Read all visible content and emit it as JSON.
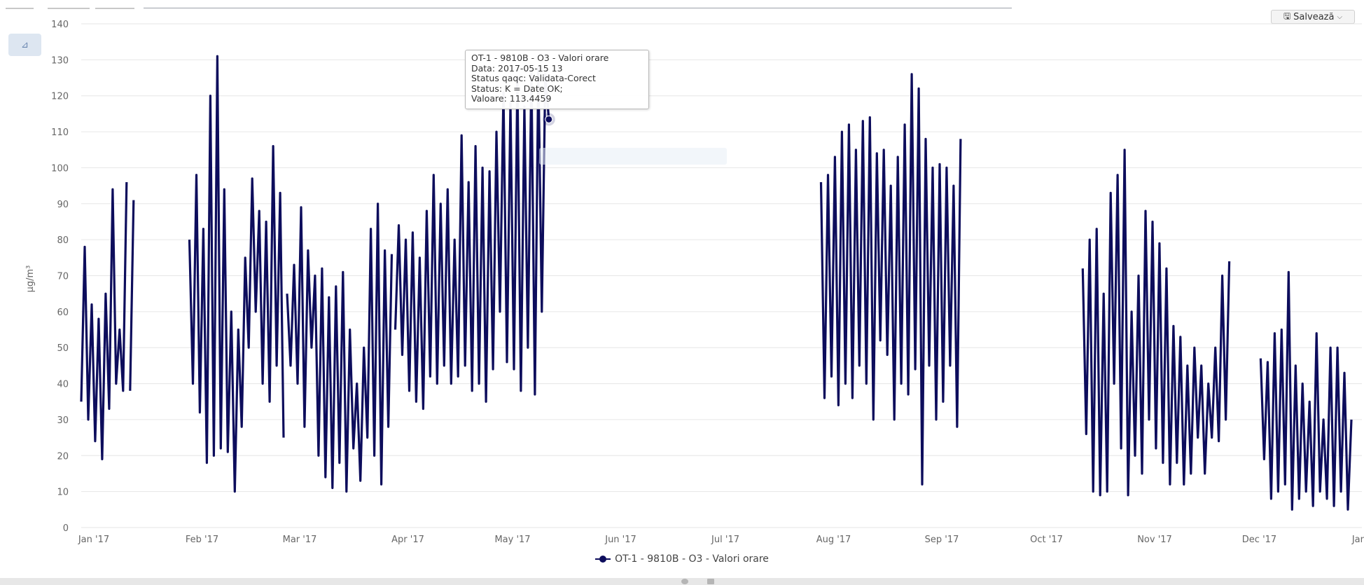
{
  "toolbar": {
    "save_label": "Salvează",
    "save_icon": "disk-icon",
    "menu_icon": "chevron-down-icon",
    "side_button_icon": "chart-menu-icon",
    "side_button_label": "⊿"
  },
  "tooltip": {
    "lines": [
      "OT-1 - 9810B - O3 - Valori orare",
      "Data: 2017-05-15 13",
      "Status qaqc: Validata-Corect",
      "Status: K = Date OK;",
      "Valoare: 113.4459"
    ]
  },
  "faded_button_label": "",
  "chart_data": {
    "type": "line",
    "title": "",
    "xlabel": "",
    "ylabel": "µg/m³",
    "ylim": [
      0,
      140
    ],
    "yticks": [
      0,
      10,
      20,
      30,
      40,
      50,
      60,
      70,
      80,
      90,
      100,
      110,
      120,
      130,
      140
    ],
    "xlim": [
      "2017-01-01",
      "2018-01-01"
    ],
    "xticks": [
      {
        "date": "2017-01-01",
        "label": "Jan '17"
      },
      {
        "date": "2017-02-01",
        "label": "Feb '17"
      },
      {
        "date": "2017-03-01",
        "label": "Mar '17"
      },
      {
        "date": "2017-04-01",
        "label": "Apr '17"
      },
      {
        "date": "2017-05-01",
        "label": "May '17"
      },
      {
        "date": "2017-06-01",
        "label": "Jun '17"
      },
      {
        "date": "2017-07-01",
        "label": "Jul '17"
      },
      {
        "date": "2017-08-01",
        "label": "Aug '17"
      },
      {
        "date": "2017-09-01",
        "label": "Sep '17"
      },
      {
        "date": "2017-10-01",
        "label": "Oct '17"
      },
      {
        "date": "2017-11-01",
        "label": "Nov '17"
      },
      {
        "date": "2017-12-01",
        "label": "Dec '17"
      },
      {
        "date": "2018-01-01",
        "label": "Jan '18"
      }
    ],
    "grid": true,
    "legend_position": "bottom-center",
    "series": [
      {
        "name": "OT-1 - 9810B - O3 - Valori orare",
        "color": "#0d0d5c",
        "segments": [
          {
            "x": [
              "2017-01-01",
              "2017-01-02",
              "2017-01-03",
              "2017-01-04",
              "2017-01-05",
              "2017-01-06",
              "2017-01-07",
              "2017-01-08",
              "2017-01-09",
              "2017-01-10",
              "2017-01-11",
              "2017-01-12",
              "2017-01-13",
              "2017-01-14"
            ],
            "y": [
              35,
              78,
              30,
              62,
              24,
              58,
              19,
              65,
              33,
              94,
              40,
              55,
              38,
              96
            ]
          },
          {
            "x": [
              "2017-01-15",
              "2017-01-16"
            ],
            "y": [
              38,
              91
            ]
          },
          {
            "x": [
              "2017-02-01",
              "2017-02-02",
              "2017-02-03",
              "2017-02-04",
              "2017-02-05",
              "2017-02-06",
              "2017-02-07",
              "2017-02-08",
              "2017-02-09",
              "2017-02-10",
              "2017-02-11",
              "2017-02-12",
              "2017-02-13",
              "2017-02-14",
              "2017-02-15",
              "2017-02-16",
              "2017-02-17",
              "2017-02-18",
              "2017-02-19",
              "2017-02-20",
              "2017-02-21",
              "2017-02-22",
              "2017-02-23",
              "2017-02-24",
              "2017-02-25",
              "2017-02-26",
              "2017-02-27",
              "2017-02-28"
            ],
            "y": [
              80,
              40,
              98,
              32,
              83,
              18,
              120,
              20,
              131,
              22,
              94,
              21,
              60,
              10,
              55,
              28,
              75,
              50,
              97,
              60,
              88,
              40,
              85,
              35,
              106,
              45,
              93,
              25
            ]
          },
          {
            "x": [
              "2017-03-01",
              "2017-03-02",
              "2017-03-03",
              "2017-03-04",
              "2017-03-05",
              "2017-03-06",
              "2017-03-07",
              "2017-03-08",
              "2017-03-09",
              "2017-03-10",
              "2017-03-11",
              "2017-03-12",
              "2017-03-13",
              "2017-03-14",
              "2017-03-15",
              "2017-03-16",
              "2017-03-17",
              "2017-03-18",
              "2017-03-19",
              "2017-03-20",
              "2017-03-21",
              "2017-03-22",
              "2017-03-23",
              "2017-03-24",
              "2017-03-25",
              "2017-03-26",
              "2017-03-27",
              "2017-03-28",
              "2017-03-29",
              "2017-03-30",
              "2017-03-31"
            ],
            "y": [
              65,
              45,
              73,
              40,
              89,
              28,
              77,
              50,
              70,
              20,
              72,
              14,
              64,
              11,
              67,
              18,
              71,
              10,
              55,
              22,
              40,
              13,
              50,
              25,
              83,
              20,
              90,
              12,
              77,
              28,
              76
            ]
          },
          {
            "x": [
              "2017-04-01",
              "2017-04-02",
              "2017-04-03",
              "2017-04-04",
              "2017-04-05",
              "2017-04-06",
              "2017-04-07",
              "2017-04-08",
              "2017-04-09",
              "2017-04-10",
              "2017-04-11",
              "2017-04-12",
              "2017-04-13",
              "2017-04-14",
              "2017-04-15",
              "2017-04-16",
              "2017-04-17",
              "2017-04-18",
              "2017-04-19",
              "2017-04-20",
              "2017-04-21",
              "2017-04-22",
              "2017-04-23",
              "2017-04-24",
              "2017-04-25",
              "2017-04-26",
              "2017-04-27",
              "2017-04-28",
              "2017-04-29",
              "2017-04-30",
              "2017-05-01",
              "2017-05-02",
              "2017-05-03",
              "2017-05-04",
              "2017-05-05",
              "2017-05-06",
              "2017-05-07",
              "2017-05-08",
              "2017-05-09",
              "2017-05-10",
              "2017-05-11",
              "2017-05-12",
              "2017-05-13",
              "2017-05-14",
              "2017-05-15"
            ],
            "y": [
              55,
              84,
              48,
              80,
              38,
              82,
              35,
              75,
              33,
              88,
              42,
              98,
              40,
              90,
              45,
              94,
              40,
              80,
              42,
              109,
              45,
              96,
              38,
              106,
              40,
              100,
              35,
              99,
              44,
              110,
              60,
              121,
              46,
              118,
              44,
              125,
              38,
              117,
              50,
              127,
              37,
              128,
              60,
              126,
              113.4459
            ]
          }
        ],
        "segments_2": [
          {
            "x": [
              "2017-08-01",
              "2017-08-02",
              "2017-08-03",
              "2017-08-04",
              "2017-08-05",
              "2017-08-06",
              "2017-08-07",
              "2017-08-08",
              "2017-08-09",
              "2017-08-10",
              "2017-08-11",
              "2017-08-12",
              "2017-08-13",
              "2017-08-14",
              "2017-08-15",
              "2017-08-16",
              "2017-08-17",
              "2017-08-18",
              "2017-08-19",
              "2017-08-20",
              "2017-08-21",
              "2017-08-22",
              "2017-08-23",
              "2017-08-24",
              "2017-08-25",
              "2017-08-26",
              "2017-08-27",
              "2017-08-28",
              "2017-08-29",
              "2017-08-30",
              "2017-08-31",
              "2017-09-01",
              "2017-09-02",
              "2017-09-03",
              "2017-09-04",
              "2017-09-05",
              "2017-09-06",
              "2017-09-07",
              "2017-09-08",
              "2017-09-09",
              "2017-09-10"
            ],
            "y": [
              96,
              36,
              98,
              42,
              103,
              34,
              110,
              40,
              112,
              36,
              105,
              45,
              113,
              40,
              114,
              30,
              104,
              52,
              105,
              48,
              95,
              30,
              103,
              40,
              112,
              37,
              126,
              44,
              122,
              12,
              108,
              45,
              100,
              30,
              101,
              35,
              100,
              45,
              95,
              28,
              108
            ]
          },
          {
            "x": [
              "2017-10-15",
              "2017-10-16",
              "2017-10-17",
              "2017-10-18",
              "2017-10-19",
              "2017-10-20",
              "2017-10-21",
              "2017-10-22",
              "2017-10-23",
              "2017-10-24",
              "2017-10-25",
              "2017-10-26",
              "2017-10-27",
              "2017-10-28",
              "2017-10-29",
              "2017-10-30",
              "2017-10-31",
              "2017-11-01",
              "2017-11-02",
              "2017-11-03",
              "2017-11-04",
              "2017-11-05",
              "2017-11-06",
              "2017-11-07",
              "2017-11-08",
              "2017-11-09",
              "2017-11-10",
              "2017-11-11",
              "2017-11-12",
              "2017-11-13",
              "2017-11-14",
              "2017-11-15",
              "2017-11-16",
              "2017-11-17",
              "2017-11-18",
              "2017-11-19",
              "2017-11-20",
              "2017-11-21",
              "2017-11-22",
              "2017-11-23",
              "2017-11-24",
              "2017-11-25",
              "2017-11-26"
            ],
            "y": [
              72,
              26,
              80,
              10,
              83,
              9,
              65,
              10,
              93,
              40,
              98,
              22,
              105,
              9,
              60,
              20,
              70,
              15,
              88,
              30,
              85,
              22,
              79,
              18,
              72,
              12,
              56,
              18,
              53,
              12,
              45,
              15,
              50,
              25,
              45,
              15,
              40,
              25,
              50,
              24,
              70,
              30,
              74
            ]
          },
          {
            "x": [
              "2017-12-05",
              "2017-12-06",
              "2017-12-07",
              "2017-12-08",
              "2017-12-09",
              "2017-12-10",
              "2017-12-11",
              "2017-12-12",
              "2017-12-13",
              "2017-12-14",
              "2017-12-15",
              "2017-12-16",
              "2017-12-17",
              "2017-12-18",
              "2017-12-19",
              "2017-12-20",
              "2017-12-21",
              "2017-12-22",
              "2017-12-23",
              "2017-12-24",
              "2017-12-25",
              "2017-12-26",
              "2017-12-27",
              "2017-12-28",
              "2017-12-29",
              "2017-12-30",
              "2017-12-31"
            ],
            "y": [
              47,
              19,
              46,
              8,
              54,
              10,
              55,
              12,
              71,
              5,
              45,
              8,
              40,
              10,
              35,
              6,
              54,
              10,
              30,
              8,
              50,
              6,
              50,
              10,
              43,
              5,
              30
            ]
          }
        ]
      }
    ],
    "tooltip_point": {
      "x": "2017-05-15",
      "y": 113.4459
    }
  }
}
